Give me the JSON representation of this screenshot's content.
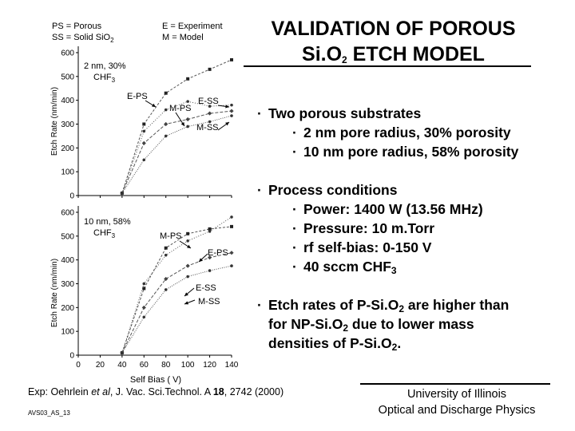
{
  "slide": {
    "title_line1": "VALIDATION OF POROUS",
    "title_line2_a": "Si.O",
    "title_line2_sub": "2",
    "title_line2_b": " ETCH MODEL",
    "bullet_char": "·",
    "bullets": {
      "b1": "Two porous substrates",
      "b1_1": "2 nm pore radius, 30% porosity",
      "b1_2": "10 nm pore radius, 58% porosity",
      "b2": "Process conditions",
      "b2_1": "Power: 1400 W (13.56 MHz)",
      "b2_2": "Pressure: 10 m.Torr",
      "b2_3": "rf self-bias: 0-150 V",
      "b2_4a": "40 sccm CHF",
      "b2_4sub": "3",
      "b3_l1a": "Etch rates of P-Si.O",
      "b3_l1sub": "2",
      "b3_l1b": " are higher than",
      "b3_l2a": "for NP-Si.O",
      "b3_l2sub": "2",
      "b3_l2b": " due to lower mass",
      "b3_l3a": "densities of P-Si.O",
      "b3_l3sub": "2",
      "b3_l3b": "."
    },
    "reference": {
      "prefix": "Exp: Oehrlein ",
      "etal": "et al",
      "mid": ", J. Vac. Sci.Technol. A ",
      "vol": "18",
      "rest": ", 2742 (2000)"
    },
    "slide_id": "AVS03_AS_13",
    "footer_line1": "University of Illinois",
    "footer_line2": "Optical and Discharge Physics"
  },
  "chart_data": [
    {
      "type": "scatter",
      "panel": "top",
      "legend": {
        "ps": "PS = Porous",
        "ss_a": "SS = Solid SiO",
        "ss_sub": "2",
        "e": "E   = Experiment",
        "m": "M  = Model"
      },
      "condition_line1": "2 nm, 30%",
      "condition_line2_a": "CHF",
      "condition_line2_sub": "3",
      "ylabel": "Etch Rate (nm/min)",
      "yticks": [
        "0",
        "100",
        "200",
        "300",
        "400",
        "500",
        "600"
      ],
      "ylim": [
        0,
        620
      ],
      "xlim": [
        0,
        140
      ],
      "annotations": [
        "E-PS",
        "M-PS",
        "E-SS",
        "M-SS"
      ],
      "series": [
        {
          "name": "E-PS",
          "x": [
            40,
            60,
            80,
            100,
            120,
            140
          ],
          "y": [
            10,
            300,
            430,
            490,
            530,
            570
          ]
        },
        {
          "name": "M-PS",
          "x": [
            40,
            60,
            80,
            100,
            120,
            140
          ],
          "y": [
            10,
            270,
            360,
            395,
            375,
            380
          ]
        },
        {
          "name": "E-SS",
          "x": [
            40,
            60,
            80,
            100,
            120,
            140
          ],
          "y": [
            10,
            220,
            300,
            320,
            345,
            355
          ]
        },
        {
          "name": "M-SS",
          "x": [
            40,
            60,
            80,
            100,
            120,
            140
          ],
          "y": [
            10,
            150,
            250,
            290,
            310,
            335
          ]
        }
      ]
    },
    {
      "type": "scatter",
      "panel": "bottom",
      "condition_line1": "10 nm, 58%",
      "condition_line2_a": "CHF",
      "condition_line2_sub": "3",
      "ylabel": "Etch Rate (nm/min)",
      "xlabel": "Self Bias ( V)",
      "yticks": [
        "0",
        "100",
        "200",
        "300",
        "400",
        "500",
        "600"
      ],
      "xticks": [
        "0",
        "20",
        "40",
        "60",
        "80",
        "100",
        "120",
        "140"
      ],
      "ylim": [
        0,
        620
      ],
      "xlim": [
        0,
        140
      ],
      "annotations": [
        "M-PS",
        "E-PS",
        "E-SS",
        "M-SS"
      ],
      "series": [
        {
          "name": "M-PS",
          "x": [
            40,
            60,
            80,
            100,
            120,
            140
          ],
          "y": [
            10,
            280,
            450,
            510,
            530,
            540
          ]
        },
        {
          "name": "E-PS",
          "x": [
            40,
            60,
            80,
            100,
            120,
            140
          ],
          "y": [
            10,
            300,
            420,
            480,
            520,
            580
          ]
        },
        {
          "name": "E-SS",
          "x": [
            40,
            60,
            80,
            100,
            120,
            140
          ],
          "y": [
            10,
            200,
            320,
            375,
            410,
            430
          ]
        },
        {
          "name": "M-SS",
          "x": [
            40,
            60,
            80,
            100,
            120,
            140
          ],
          "y": [
            10,
            160,
            275,
            330,
            355,
            375
          ]
        }
      ]
    }
  ]
}
